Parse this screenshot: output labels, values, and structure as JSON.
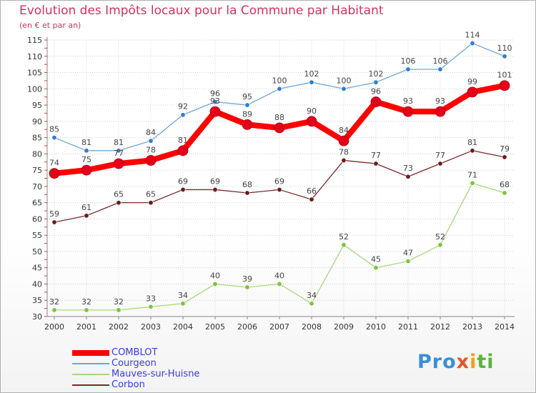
{
  "header": {
    "title": "Evolution des Impôts locaux pour la Commune par Habitant",
    "subtitle": "(en € et par an)"
  },
  "chart_data": {
    "type": "line",
    "title": "Evolution des Impôts locaux pour la Commune par Habitant",
    "subtitle": "(en € et par an)",
    "xlabel": "",
    "ylabel": "",
    "x": [
      "2000",
      "2001",
      "2002",
      "2003",
      "2004",
      "2005",
      "2006",
      "2007",
      "2008",
      "2009",
      "2010",
      "2011",
      "2012",
      "2013",
      "2014"
    ],
    "ylim": [
      30,
      115
    ],
    "yticks": [
      30,
      35,
      40,
      45,
      50,
      55,
      60,
      65,
      70,
      75,
      80,
      85,
      90,
      95,
      100,
      105,
      110,
      115
    ],
    "grid": true,
    "legend_position": "bottom-left",
    "series": [
      {
        "name": "COMBLOT",
        "color": "#ff0000",
        "marker": "#e2001a",
        "emphasis": true,
        "values": [
          74,
          75,
          77,
          78,
          81,
          93,
          89,
          88,
          90,
          84,
          96,
          93,
          93,
          99,
          101
        ]
      },
      {
        "name": "Courgeon",
        "color": "#6ea7d8",
        "marker": "#2f7fc8",
        "values": [
          85,
          81,
          81,
          84,
          92,
          96,
          95,
          100,
          102,
          100,
          102,
          106,
          106,
          114,
          110
        ]
      },
      {
        "name": "Mauves-sur-Huisne",
        "color": "#a6d97a",
        "marker": "#7cc43c",
        "values": [
          32,
          32,
          32,
          33,
          34,
          40,
          39,
          40,
          34,
          52,
          45,
          47,
          52,
          71,
          68
        ]
      },
      {
        "name": "Corbon",
        "color": "#7a2a2a",
        "marker": "#6b1a1a",
        "values": [
          59,
          61,
          65,
          65,
          69,
          69,
          68,
          69,
          66,
          78,
          77,
          73,
          77,
          81,
          79
        ]
      }
    ]
  },
  "logo": {
    "p1": "Pro",
    "p2": "x",
    "p3": "i",
    "p4": "ti"
  }
}
